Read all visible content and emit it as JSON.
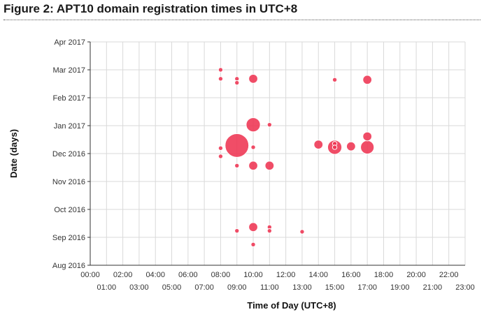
{
  "figure": {
    "title": "Figure 2: APT10 domain registration times in UTC+8"
  },
  "colors": {
    "bubble_fill": "#ee3452",
    "bubble_stroke": "#ffffff",
    "grid": "#d9d9d9",
    "axis": "#333333"
  },
  "chart_data": {
    "type": "scatter",
    "subtype": "bubble",
    "title": "",
    "xlabel": "Time of Day (UTC+8)",
    "ylabel": "Date (days)",
    "grid": true,
    "legend": "none",
    "xlim": [
      "00:00",
      "23:00"
    ],
    "ylim": [
      "Aug 2016",
      "Apr 2017"
    ],
    "x_ticks_top": [
      "00:00",
      "02:00",
      "04:00",
      "06:00",
      "08:00",
      "10:00",
      "12:00",
      "14:00",
      "16:00",
      "18:00",
      "20:00",
      "22:00"
    ],
    "x_ticks_bottom": [
      "01:00",
      "03:00",
      "05:00",
      "07:00",
      "09:00",
      "11:00",
      "13:00",
      "15:00",
      "17:00",
      "19:00",
      "21:00",
      "23:00"
    ],
    "y_ticks": [
      "Aug 2016",
      "Sep 2016",
      "Oct 2016",
      "Nov 2016",
      "Dec 2016",
      "Jan 2017",
      "Feb 2017",
      "Mar 2017",
      "Apr 2017"
    ],
    "points": [
      {
        "x": "08:00",
        "y": "2017-03-01",
        "size": 1
      },
      {
        "x": "08:00",
        "y": "2017-02-20",
        "size": 1
      },
      {
        "x": "09:00",
        "y": "2017-02-20",
        "size": 1
      },
      {
        "x": "09:00",
        "y": "2017-02-16",
        "size": 1
      },
      {
        "x": "10:00",
        "y": "2017-02-20",
        "size": 4
      },
      {
        "x": "15:00",
        "y": "2017-02-19",
        "size": 1
      },
      {
        "x": "17:00",
        "y": "2017-02-19",
        "size": 4
      },
      {
        "x": "10:00",
        "y": "2017-01-02",
        "size": 10
      },
      {
        "x": "11:00",
        "y": "2017-01-02",
        "size": 1
      },
      {
        "x": "09:00",
        "y": "2016-12-10",
        "size": 28
      },
      {
        "x": "08:00",
        "y": "2016-12-07",
        "size": 1
      },
      {
        "x": "10:00",
        "y": "2016-12-08",
        "size": 1
      },
      {
        "x": "08:00",
        "y": "2016-11-28",
        "size": 1
      },
      {
        "x": "14:00",
        "y": "2016-12-11",
        "size": 4
      },
      {
        "x": "15:00",
        "y": "2016-12-08",
        "size": 10
      },
      {
        "x": "15:00",
        "y": "2016-12-12",
        "size": 1
      },
      {
        "x": "15:00",
        "y": "2016-12-08",
        "size": 1
      },
      {
        "x": "16:00",
        "y": "2016-12-09",
        "size": 4
      },
      {
        "x": "17:00",
        "y": "2016-12-20",
        "size": 4
      },
      {
        "x": "17:00",
        "y": "2016-12-08",
        "size": 9
      },
      {
        "x": "09:00",
        "y": "2016-11-18",
        "size": 1
      },
      {
        "x": "10:00",
        "y": "2016-11-18",
        "size": 4
      },
      {
        "x": "11:00",
        "y": "2016-11-18",
        "size": 4
      },
      {
        "x": "10:00",
        "y": "2016-09-12",
        "size": 4
      },
      {
        "x": "11:00",
        "y": "2016-09-12",
        "size": 1
      },
      {
        "x": "11:00",
        "y": "2016-09-08",
        "size": 1
      },
      {
        "x": "09:00",
        "y": "2016-09-08",
        "size": 1
      },
      {
        "x": "13:00",
        "y": "2016-09-07",
        "size": 1
      },
      {
        "x": "10:00",
        "y": "2016-08-24",
        "size": 1
      }
    ]
  }
}
